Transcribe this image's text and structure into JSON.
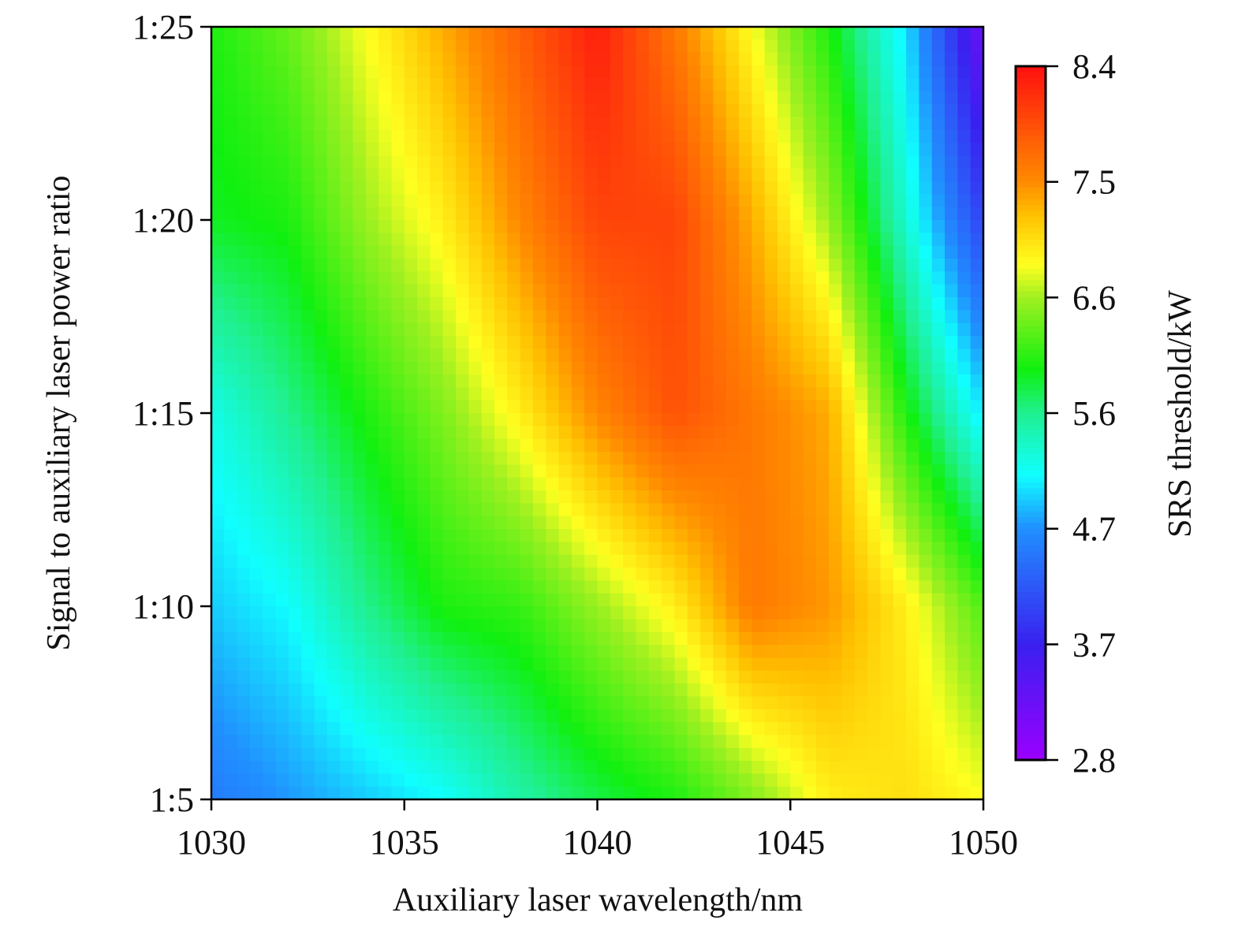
{
  "chart_data": {
    "type": "heatmap",
    "xlabel": "Auxiliary laser wavelength/nm",
    "ylabel": "Signal to auxiliary laser power ratio",
    "colorbar_label": "SRS threshold/kW",
    "xlim": [
      1030,
      1050
    ],
    "ylim": [
      5,
      25
    ],
    "x_ticks": [
      1030,
      1035,
      1040,
      1045,
      1050
    ],
    "x_tick_labels": [
      "1030",
      "1035",
      "1040",
      "1045",
      "1050"
    ],
    "y_ticks": [
      5,
      10,
      15,
      20,
      25
    ],
    "y_tick_labels": [
      "1:5",
      "1:10",
      "1:15",
      "1:20",
      "1:25"
    ],
    "colorbar_range": [
      2.8,
      8.4
    ],
    "colorbar_ticks": [
      2.8,
      3.7,
      4.7,
      5.6,
      6.6,
      7.5,
      8.4
    ],
    "colorbar_tick_labels": [
      "2.8",
      "3.7",
      "4.7",
      "5.6",
      "6.6",
      "7.5",
      "8.4"
    ],
    "colormap": [
      {
        "v": 2.8,
        "c": "#9a00ff"
      },
      {
        "v": 3.73,
        "c": "#3a20f0"
      },
      {
        "v": 4.67,
        "c": "#2090ff"
      },
      {
        "v": 5.1,
        "c": "#10ffff"
      },
      {
        "v": 5.6,
        "c": "#20f090"
      },
      {
        "v": 5.95,
        "c": "#10f010"
      },
      {
        "v": 6.53,
        "c": "#a0f020"
      },
      {
        "v": 6.8,
        "c": "#ffff20"
      },
      {
        "v": 7.2,
        "c": "#ffc000"
      },
      {
        "v": 7.47,
        "c": "#ff8a00"
      },
      {
        "v": 8.4,
        "c": "#ff1010"
      }
    ],
    "x": [
      1030,
      1032,
      1034,
      1036,
      1038,
      1040,
      1042,
      1044,
      1046,
      1048,
      1050
    ],
    "y": [
      5,
      10,
      15,
      20,
      25
    ],
    "z": [
      [
        4.5,
        4.7,
        4.9,
        5.1,
        5.5,
        5.8,
        6.0,
        6.4,
        6.9,
        7.0,
        6.8
      ],
      [
        4.9,
        5.1,
        5.6,
        6.0,
        6.1,
        6.5,
        6.9,
        7.6,
        7.4,
        6.9,
        6.2
      ],
      [
        5.2,
        5.6,
        6.0,
        6.4,
        6.9,
        7.5,
        7.9,
        7.6,
        7.3,
        6.0,
        5.0
      ],
      [
        5.9,
        6.0,
        6.5,
        6.9,
        7.5,
        8.0,
        8.0,
        7.3,
        6.5,
        5.3,
        4.0
      ],
      [
        6.0,
        6.3,
        6.8,
        7.3,
        7.8,
        8.3,
        7.6,
        6.8,
        6.0,
        5.0,
        3.2
      ]
    ]
  }
}
